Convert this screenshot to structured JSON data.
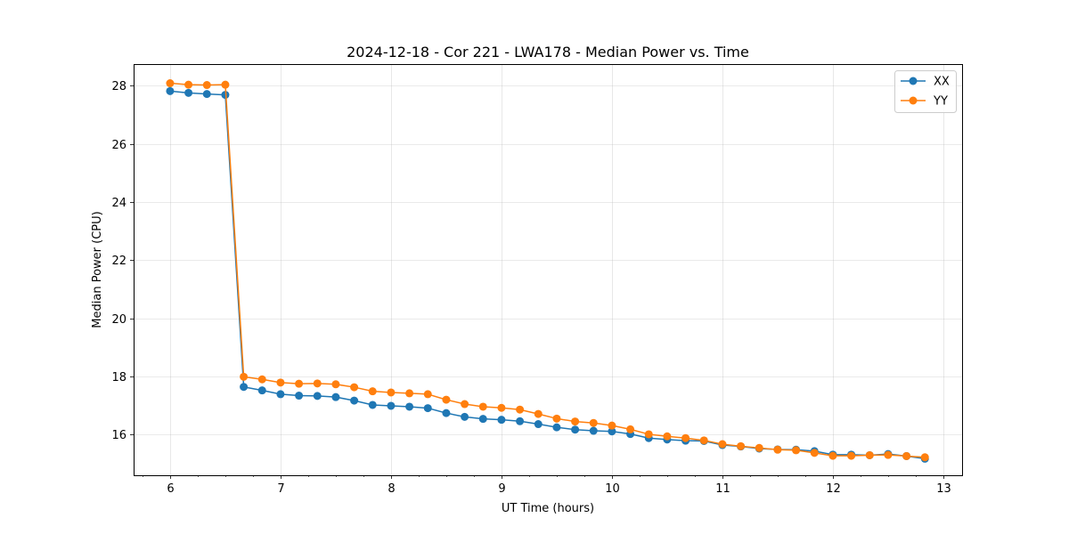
{
  "chart_data": {
    "type": "line",
    "title": "2024-12-18 - Cor 221 - LWA178 - Median Power vs. Time",
    "xlabel": "UT Time (hours)",
    "ylabel": "Median Power (CPU)",
    "xlim": [
      5.67,
      13.17
    ],
    "ylim": [
      14.6,
      28.75
    ],
    "xticks": [
      6,
      7,
      8,
      9,
      10,
      11,
      12,
      13
    ],
    "yticks": [
      16,
      18,
      20,
      22,
      24,
      26,
      28
    ],
    "grid": true,
    "legend_position": "top-right",
    "x": [
      6.0,
      6.1667,
      6.3333,
      6.5,
      6.6667,
      6.8333,
      7.0,
      7.1667,
      7.3333,
      7.5,
      7.6667,
      7.8333,
      8.0,
      8.1667,
      8.3333,
      8.5,
      8.6667,
      8.8333,
      9.0,
      9.1667,
      9.3333,
      9.5,
      9.6667,
      9.8333,
      10.0,
      10.1667,
      10.3333,
      10.5,
      10.6667,
      10.8333,
      11.0,
      11.1667,
      11.3333,
      11.5,
      11.6667,
      11.8333,
      12.0,
      12.1667,
      12.3333,
      12.5,
      12.6667,
      12.8333
    ],
    "series": [
      {
        "name": "XX",
        "color": "#1f77b4",
        "values": [
          27.82,
          27.76,
          27.72,
          27.69,
          17.64,
          17.52,
          17.39,
          17.34,
          17.33,
          17.29,
          17.17,
          17.02,
          16.99,
          16.96,
          16.91,
          16.74,
          16.61,
          16.54,
          16.51,
          16.46,
          16.36,
          16.25,
          16.17,
          16.13,
          16.11,
          16.02,
          15.88,
          15.83,
          15.79,
          15.78,
          15.64,
          15.59,
          15.52,
          15.49,
          15.48,
          15.43,
          15.31,
          15.31,
          15.29,
          15.33,
          15.26,
          15.17
        ]
      },
      {
        "name": "YY",
        "color": "#ff7f0e",
        "values": [
          28.09,
          28.04,
          28.03,
          28.04,
          17.99,
          17.9,
          17.79,
          17.75,
          17.76,
          17.73,
          17.63,
          17.49,
          17.45,
          17.42,
          17.39,
          17.2,
          17.05,
          16.96,
          16.92,
          16.86,
          16.71,
          16.55,
          16.45,
          16.4,
          16.31,
          16.18,
          16.01,
          15.94,
          15.88,
          15.8,
          15.67,
          15.6,
          15.54,
          15.48,
          15.46,
          15.37,
          15.27,
          15.27,
          15.29,
          15.3,
          15.26,
          15.22
        ]
      }
    ]
  }
}
